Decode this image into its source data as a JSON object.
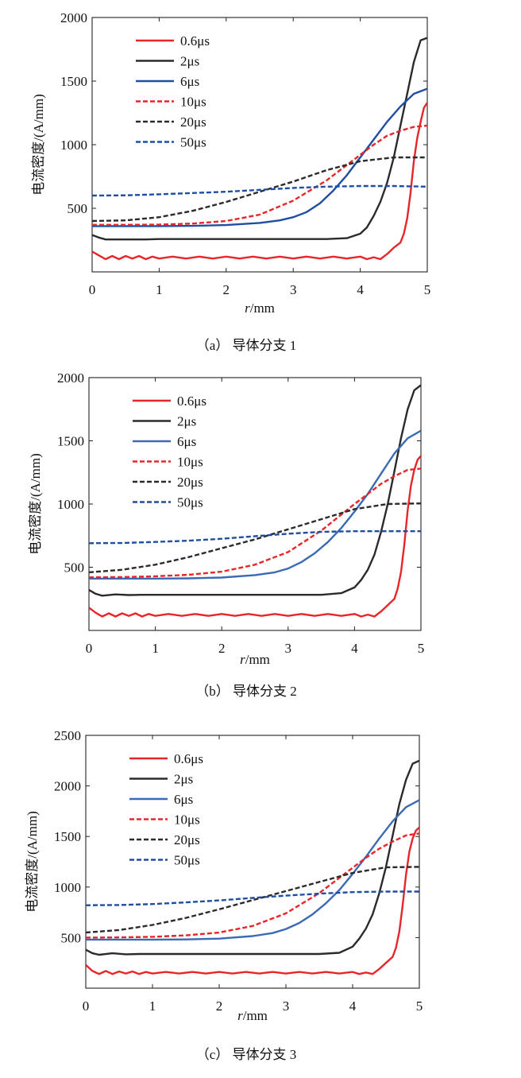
{
  "chart_data": [
    {
      "type": "line",
      "caption": "（a） 导体分支 1",
      "xlabel_italic": "r",
      "xlabel_rest": "/mm",
      "ylabel": "电流密度/(A/mm)",
      "xlim": [
        0,
        5
      ],
      "ylim": [
        0,
        2000
      ],
      "xticks": [
        "0",
        "1",
        "2",
        "3",
        "4",
        "5"
      ],
      "yticks": [
        "500",
        "1000",
        "1500",
        "2000"
      ],
      "grid": false,
      "legend_position": "top-left",
      "series": [
        {
          "name": "0.6μs",
          "color": "#e8262a",
          "style": "solid",
          "x": [
            0,
            0.1,
            0.2,
            0.3,
            0.4,
            0.5,
            0.6,
            0.7,
            0.8,
            0.9,
            1.0,
            1.2,
            1.4,
            1.6,
            1.8,
            2.0,
            2.2,
            2.4,
            2.6,
            2.8,
            3.0,
            3.2,
            3.4,
            3.6,
            3.8,
            4.0,
            4.1,
            4.2,
            4.3,
            4.4,
            4.5,
            4.6,
            4.65,
            4.7,
            4.75,
            4.8,
            4.85,
            4.9,
            4.95,
            5.0
          ],
          "y": [
            160,
            130,
            100,
            125,
            100,
            125,
            105,
            125,
            100,
            120,
            105,
            120,
            105,
            120,
            105,
            120,
            105,
            120,
            105,
            120,
            105,
            120,
            105,
            120,
            105,
            120,
            100,
            115,
            100,
            140,
            190,
            230,
            300,
            420,
            620,
            870,
            1050,
            1180,
            1290,
            1330
          ]
        },
        {
          "name": "2μs",
          "color": "#2b2b2b",
          "style": "solid",
          "x": [
            0,
            0.1,
            0.2,
            0.4,
            0.6,
            0.8,
            1.0,
            1.5,
            2.0,
            2.5,
            3.0,
            3.5,
            3.8,
            4.0,
            4.1,
            4.2,
            4.3,
            4.4,
            4.5,
            4.6,
            4.7,
            4.8,
            4.9,
            5.0
          ],
          "y": [
            290,
            270,
            255,
            255,
            255,
            255,
            258,
            258,
            258,
            258,
            258,
            258,
            265,
            300,
            350,
            440,
            550,
            700,
            900,
            1150,
            1400,
            1650,
            1820,
            1840
          ]
        },
        {
          "name": "6μs",
          "color": "#1f4ea3",
          "style": "solid",
          "x": [
            0,
            0.5,
            1.0,
            1.5,
            2.0,
            2.5,
            2.8,
            3.0,
            3.2,
            3.4,
            3.6,
            3.8,
            4.0,
            4.2,
            4.4,
            4.6,
            4.8,
            5.0
          ],
          "y": [
            360,
            360,
            360,
            362,
            368,
            385,
            405,
            430,
            470,
            540,
            640,
            760,
            900,
            1040,
            1180,
            1300,
            1400,
            1440
          ]
        },
        {
          "name": "10μs",
          "color": "#e8262a",
          "style": "dashed",
          "x": [
            0,
            0.5,
            1.0,
            1.5,
            2.0,
            2.5,
            3.0,
            3.5,
            4.0,
            4.2,
            4.4,
            4.6,
            4.8,
            5.0
          ],
          "y": [
            370,
            370,
            372,
            380,
            400,
            450,
            560,
            720,
            920,
            1000,
            1070,
            1110,
            1140,
            1150
          ]
        },
        {
          "name": "20μs",
          "color": "#2b2b2b",
          "style": "dashed",
          "x": [
            0,
            0.5,
            1.0,
            1.5,
            2.0,
            2.5,
            3.0,
            3.5,
            4.0,
            4.5,
            5.0
          ],
          "y": [
            400,
            405,
            430,
            480,
            550,
            630,
            710,
            800,
            870,
            900,
            900
          ]
        },
        {
          "name": "50μs",
          "color": "#1f4ea3",
          "style": "dashed",
          "x": [
            0,
            0.5,
            1.0,
            1.5,
            2.0,
            2.5,
            3.0,
            3.5,
            4.0,
            4.5,
            5.0
          ],
          "y": [
            600,
            602,
            610,
            620,
            630,
            645,
            660,
            670,
            675,
            675,
            670
          ]
        }
      ]
    },
    {
      "type": "line",
      "caption": "（b） 导体分支 2",
      "xlabel_italic": "r",
      "xlabel_rest": "/mm",
      "ylabel": "电流密度/(A/mm)",
      "xlim": [
        0,
        5
      ],
      "ylim": [
        0,
        2000
      ],
      "xticks": [
        "0",
        "1",
        "2",
        "3",
        "4",
        "5"
      ],
      "yticks": [
        "500",
        "1000",
        "1500",
        "2000"
      ],
      "grid": false,
      "legend_position": "top-left",
      "series": [
        {
          "name": "0.6μs",
          "color": "#e8262a",
          "style": "solid",
          "x": [
            0,
            0.1,
            0.2,
            0.3,
            0.4,
            0.5,
            0.6,
            0.7,
            0.8,
            0.9,
            1.0,
            1.2,
            1.4,
            1.6,
            1.8,
            2.0,
            2.2,
            2.4,
            2.6,
            2.8,
            3.0,
            3.2,
            3.4,
            3.6,
            3.8,
            4.0,
            4.1,
            4.2,
            4.3,
            4.4,
            4.5,
            4.6,
            4.65,
            4.7,
            4.75,
            4.8,
            4.85,
            4.9,
            4.95,
            5.0
          ],
          "y": [
            180,
            140,
            110,
            135,
            110,
            135,
            115,
            135,
            110,
            130,
            115,
            130,
            115,
            130,
            115,
            130,
            115,
            130,
            115,
            130,
            115,
            130,
            115,
            130,
            115,
            130,
            110,
            125,
            110,
            150,
            200,
            250,
            330,
            460,
            680,
            950,
            1150,
            1270,
            1350,
            1380
          ]
        },
        {
          "name": "2μs",
          "color": "#2b2b2b",
          "style": "solid",
          "x": [
            0,
            0.1,
            0.2,
            0.4,
            0.6,
            0.8,
            1.0,
            1.5,
            2.0,
            2.5,
            3.0,
            3.5,
            3.8,
            4.0,
            4.1,
            4.2,
            4.3,
            4.4,
            4.5,
            4.6,
            4.7,
            4.8,
            4.9,
            5.0
          ],
          "y": [
            320,
            290,
            275,
            285,
            280,
            282,
            282,
            282,
            282,
            282,
            282,
            282,
            295,
            340,
            400,
            480,
            600,
            780,
            1000,
            1260,
            1520,
            1750,
            1900,
            1940
          ]
        },
        {
          "name": "6μs",
          "color": "#3a6ab5",
          "style": "solid",
          "x": [
            0,
            0.5,
            1.0,
            1.5,
            2.0,
            2.5,
            2.8,
            3.0,
            3.2,
            3.4,
            3.6,
            3.8,
            4.0,
            4.2,
            4.4,
            4.6,
            4.8,
            5.0
          ],
          "y": [
            410,
            410,
            410,
            412,
            418,
            438,
            460,
            490,
            540,
            610,
            700,
            810,
            940,
            1080,
            1240,
            1400,
            1520,
            1580
          ]
        },
        {
          "name": "10μs",
          "color": "#e8262a",
          "style": "dashed",
          "x": [
            0,
            0.5,
            1.0,
            1.5,
            2.0,
            2.5,
            3.0,
            3.5,
            4.0,
            4.2,
            4.4,
            4.6,
            4.8,
            5.0
          ],
          "y": [
            420,
            422,
            428,
            440,
            465,
            520,
            620,
            790,
            1000,
            1080,
            1160,
            1220,
            1270,
            1280
          ]
        },
        {
          "name": "20μs",
          "color": "#2b2b2b",
          "style": "dashed",
          "x": [
            0,
            0.5,
            1.0,
            1.5,
            2.0,
            2.5,
            3.0,
            3.5,
            4.0,
            4.5,
            5.0
          ],
          "y": [
            460,
            480,
            520,
            580,
            650,
            720,
            800,
            880,
            960,
            1000,
            1005
          ]
        },
        {
          "name": "50μs",
          "color": "#1f4ea3",
          "style": "dashed",
          "x": [
            0,
            0.5,
            1.0,
            1.5,
            2.0,
            2.5,
            3.0,
            3.5,
            4.0,
            4.5,
            5.0
          ],
          "y": [
            690,
            692,
            700,
            710,
            725,
            745,
            765,
            780,
            785,
            785,
            785
          ]
        }
      ]
    },
    {
      "type": "line",
      "caption": "（c） 导体分支 3",
      "xlabel_italic": "r",
      "xlabel_rest": "/mm",
      "ylabel": "电流密度/(A/mm)",
      "xlim": [
        0,
        5
      ],
      "ylim": [
        0,
        2500
      ],
      "xticks": [
        "0",
        "1",
        "2",
        "3",
        "4",
        "5"
      ],
      "yticks": [
        "500",
        "1000",
        "1500",
        "2000",
        "2500"
      ],
      "grid": false,
      "legend_position": "top-left",
      "series": [
        {
          "name": "0.6μs",
          "color": "#e8262a",
          "style": "solid",
          "x": [
            0,
            0.1,
            0.2,
            0.3,
            0.4,
            0.5,
            0.6,
            0.7,
            0.8,
            0.9,
            1.0,
            1.2,
            1.4,
            1.6,
            1.8,
            2.0,
            2.2,
            2.4,
            2.6,
            2.8,
            3.0,
            3.2,
            3.4,
            3.6,
            3.8,
            4.0,
            4.1,
            4.2,
            4.3,
            4.4,
            4.5,
            4.6,
            4.65,
            4.7,
            4.75,
            4.8,
            4.85,
            4.9,
            4.95,
            5.0
          ],
          "y": [
            230,
            170,
            140,
            170,
            140,
            165,
            145,
            165,
            140,
            160,
            145,
            160,
            145,
            160,
            145,
            160,
            145,
            160,
            145,
            160,
            145,
            160,
            145,
            160,
            145,
            160,
            140,
            155,
            140,
            190,
            250,
            310,
            400,
            560,
            820,
            1120,
            1350,
            1480,
            1560,
            1590
          ]
        },
        {
          "name": "2μs",
          "color": "#2b2b2b",
          "style": "solid",
          "x": [
            0,
            0.1,
            0.2,
            0.4,
            0.6,
            0.8,
            1.0,
            1.5,
            2.0,
            2.5,
            3.0,
            3.5,
            3.8,
            4.0,
            4.1,
            4.2,
            4.3,
            4.4,
            4.5,
            4.6,
            4.7,
            4.8,
            4.9,
            5.0
          ],
          "y": [
            380,
            345,
            330,
            345,
            335,
            338,
            338,
            338,
            338,
            338,
            338,
            338,
            350,
            410,
            490,
            590,
            730,
            940,
            1200,
            1510,
            1820,
            2060,
            2220,
            2250
          ]
        },
        {
          "name": "6μs",
          "color": "#3a6ab5",
          "style": "solid",
          "x": [
            0,
            0.5,
            1.0,
            1.5,
            2.0,
            2.5,
            2.8,
            3.0,
            3.2,
            3.4,
            3.6,
            3.8,
            4.0,
            4.2,
            4.4,
            4.6,
            4.8,
            5.0
          ],
          "y": [
            480,
            480,
            480,
            482,
            490,
            515,
            545,
            585,
            645,
            730,
            840,
            970,
            1130,
            1300,
            1480,
            1650,
            1790,
            1860
          ]
        },
        {
          "name": "10μs",
          "color": "#e8262a",
          "style": "dashed",
          "x": [
            0,
            0.5,
            1.0,
            1.5,
            2.0,
            2.5,
            3.0,
            3.5,
            4.0,
            4.2,
            4.4,
            4.6,
            4.8,
            5.0
          ],
          "y": [
            500,
            502,
            508,
            522,
            550,
            615,
            740,
            940,
            1190,
            1290,
            1380,
            1450,
            1510,
            1530
          ]
        },
        {
          "name": "20μs",
          "color": "#2b2b2b",
          "style": "dashed",
          "x": [
            0,
            0.5,
            1.0,
            1.5,
            2.0,
            2.5,
            3.0,
            3.5,
            4.0,
            4.5,
            5.0
          ],
          "y": [
            550,
            575,
            625,
            695,
            780,
            870,
            960,
            1050,
            1140,
            1195,
            1200
          ]
        },
        {
          "name": "50μs",
          "color": "#1f4ea3",
          "style": "dashed",
          "x": [
            0,
            0.5,
            1.0,
            1.5,
            2.0,
            2.5,
            3.0,
            3.5,
            4.0,
            4.5,
            5.0
          ],
          "y": [
            820,
            822,
            832,
            848,
            868,
            892,
            915,
            935,
            950,
            955,
            955
          ]
        }
      ]
    }
  ]
}
